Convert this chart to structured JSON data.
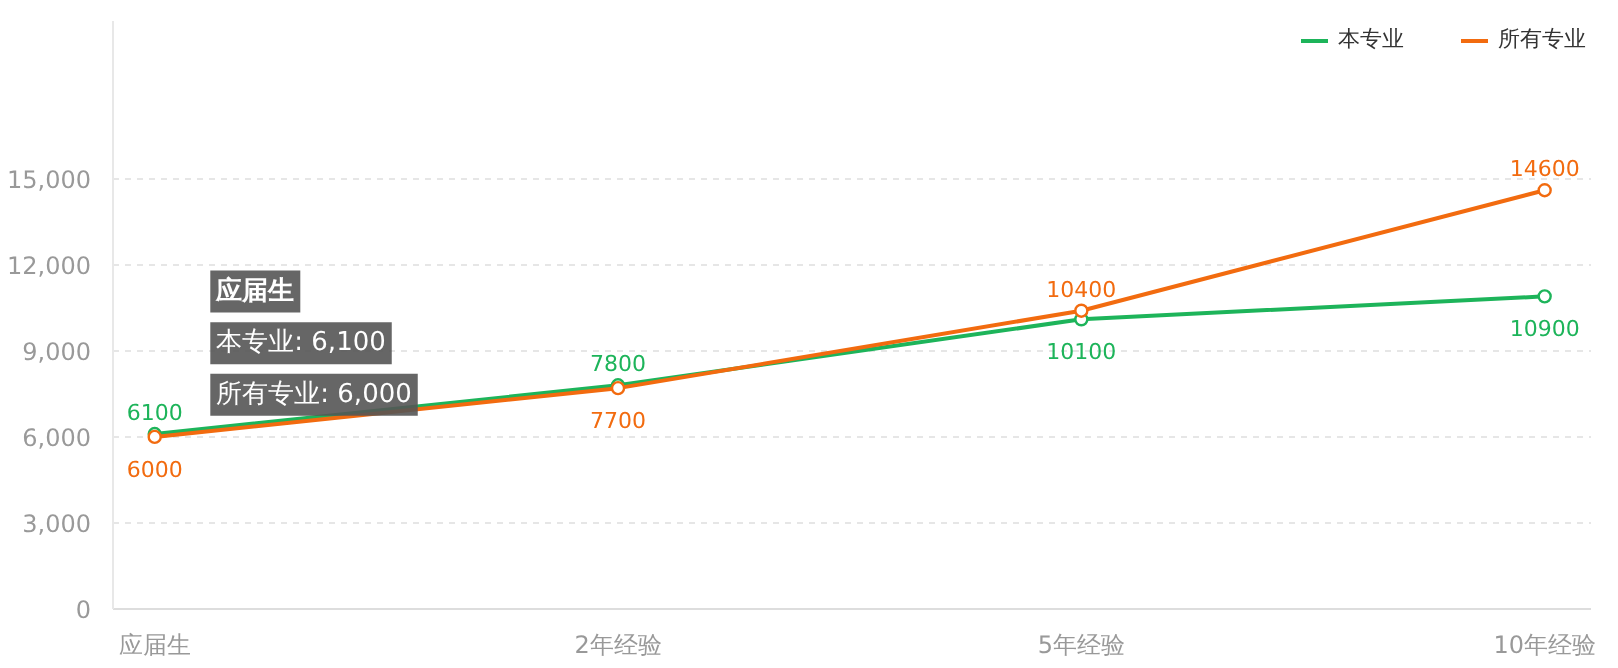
{
  "chart_data": {
    "type": "line",
    "categories": [
      "应届生",
      "2年经验",
      "5年经验",
      "10年经验"
    ],
    "series": [
      {
        "name": "本专业",
        "color": "#1db45a",
        "values": [
          6100,
          7800,
          10100,
          10900
        ]
      },
      {
        "name": "所有专业",
        "color": "#f26b0f",
        "values": [
          6000,
          7700,
          10400,
          14600
        ]
      }
    ],
    "ylim": [
      0,
      20500
    ],
    "yticks": [
      0,
      {
        "value": 3000,
        "label": "3,000"
      },
      {
        "value": 6000,
        "label": "6,000"
      },
      {
        "value": 9000,
        "label": "9,000"
      },
      {
        "value": 12000,
        "label": "12,000"
      },
      {
        "value": 15000,
        "label": "15,000"
      }
    ],
    "grid": "y",
    "legend": "top right",
    "marker": "circle",
    "line_style": "solid",
    "data_labels": true,
    "annotations": [
      "应届生",
      "本专业: 6,100",
      "所有专业: 6,000"
    ]
  }
}
